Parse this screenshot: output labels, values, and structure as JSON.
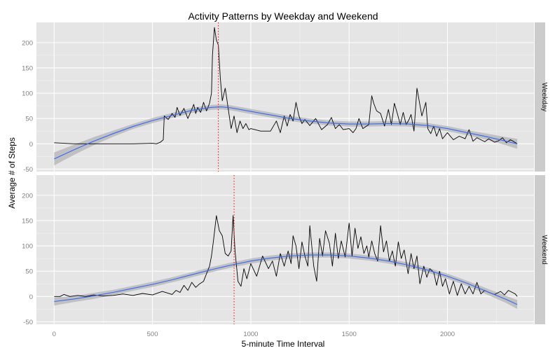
{
  "chart_data": {
    "type": "line",
    "title": "Activity Patterns by Weekday and Weekend",
    "xlabel": "5-minute Time Interval",
    "ylabel": "Average # of Steps",
    "xlim": [
      -90,
      2440
    ],
    "x_ticks": [
      0,
      500,
      1000,
      1500,
      2000
    ],
    "x_tick_labels": [
      "0",
      "500",
      "1000",
      "1500",
      "2000"
    ],
    "y_ticks": [
      -50,
      0,
      50,
      100,
      150,
      200
    ],
    "y_tick_labels": [
      "-50",
      "0",
      "50",
      "100",
      "150",
      "200"
    ],
    "grid": true,
    "colors": {
      "line": "#000000",
      "smooth": "#3366ff",
      "ribbon": "#b3b3b3",
      "vline": "#ff0000",
      "panel": "#e5e5e5",
      "strip": "#cccccc"
    },
    "panels": [
      {
        "label": "Weekday",
        "ylim": [
          -55,
          240
        ],
        "vline_x": 835,
        "series": [
          {
            "x": [
              0,
              100,
              200,
              300,
              400,
              500,
              520,
              540,
              555,
              560,
              580,
              600,
              615,
              625,
              640,
              660,
              680,
              700,
              710,
              720,
              730,
              745,
              760,
              775,
              790,
              800,
              805,
              815,
              825,
              835,
              845,
              855,
              870,
              885,
              900,
              915,
              930,
              945,
              960,
              975,
              990,
              1000,
              1050,
              1100,
              1130,
              1150,
              1170,
              1185,
              1200,
              1215,
              1230,
              1245,
              1260,
              1275,
              1300,
              1330,
              1360,
              1390,
              1410,
              1430,
              1450,
              1470,
              1500,
              1520,
              1535,
              1550,
              1570,
              1600,
              1615,
              1625,
              1640,
              1660,
              1680,
              1700,
              1715,
              1730,
              1745,
              1760,
              1775,
              1790,
              1805,
              1815,
              1830,
              1845,
              1870,
              1890,
              1900,
              1915,
              1930,
              1945,
              1960,
              1975,
              2000,
              2030,
              2060,
              2090,
              2110,
              2130,
              2150,
              2170,
              2190,
              2210,
              2240,
              2260,
              2280,
              2300,
              2320,
              2335,
              2355
            ],
            "y": [
              2,
              0,
              0,
              0,
              0,
              1,
              0,
              3,
              8,
              55,
              48,
              60,
              52,
              72,
              56,
              70,
              50,
              68,
              78,
              60,
              72,
              62,
              82,
              65,
              80,
              100,
              175,
              230,
              205,
              195,
              130,
              85,
              110,
              70,
              30,
              55,
              22,
              45,
              30,
              40,
              28,
              30,
              25,
              25,
              45,
              22,
              55,
              35,
              58,
              45,
              82,
              55,
              40,
              48,
              36,
              50,
              28,
              38,
              52,
              30,
              38,
              28,
              30,
              22,
              30,
              50,
              30,
              38,
              95,
              80,
              65,
              60,
              35,
              68,
              38,
              80,
              60,
              38,
              62,
              38,
              48,
              58,
              25,
              110,
              55,
              82,
              30,
              20,
              35,
              15,
              30,
              10,
              22,
              8,
              15,
              10,
              28,
              5,
              12,
              8,
              4,
              10,
              3,
              6,
              12,
              2,
              8,
              5,
              0
            ]
          }
        ],
        "smooth": {
          "x": [
            0,
            100,
            200,
            300,
            400,
            500,
            600,
            700,
            800,
            850,
            900,
            1000,
            1100,
            1200,
            1300,
            1400,
            1500,
            1600,
            1700,
            1800,
            1900,
            2000,
            2100,
            2200,
            2300,
            2355
          ],
          "y": [
            -30,
            -12,
            5,
            20,
            34,
            46,
            56,
            66,
            72,
            73,
            71,
            64,
            57,
            50,
            45,
            41,
            39,
            39,
            40,
            39,
            36,
            30,
            22,
            14,
            5,
            0
          ],
          "se": [
            13,
            10,
            8,
            6,
            5,
            5,
            5,
            5,
            5,
            5,
            5,
            5,
            5,
            5,
            5,
            5,
            5,
            5,
            5,
            5,
            5,
            5,
            5,
            6,
            8,
            10
          ]
        }
      },
      {
        "label": "Weekend",
        "ylim": [
          -55,
          240
        ],
        "vline_x": 915,
        "series": [
          {
            "x": [
              0,
              30,
              50,
              80,
              120,
              160,
              200,
              250,
              300,
              350,
              400,
              450,
              500,
              550,
              600,
              620,
              640,
              660,
              680,
              700,
              720,
              740,
              760,
              775,
              790,
              800,
              810,
              825,
              840,
              855,
              870,
              885,
              900,
              910,
              920,
              935,
              950,
              965,
              980,
              1000,
              1030,
              1060,
              1090,
              1110,
              1130,
              1150,
              1170,
              1190,
              1205,
              1215,
              1230,
              1245,
              1260,
              1275,
              1290,
              1300,
              1320,
              1335,
              1350,
              1365,
              1380,
              1400,
              1415,
              1430,
              1445,
              1460,
              1480,
              1500,
              1515,
              1530,
              1545,
              1560,
              1575,
              1590,
              1600,
              1615,
              1630,
              1645,
              1660,
              1675,
              1690,
              1705,
              1720,
              1735,
              1750,
              1765,
              1780,
              1800,
              1815,
              1830,
              1845,
              1860,
              1880,
              1895,
              1910,
              1930,
              1945,
              1960,
              1975,
              1990,
              2010,
              2030,
              2050,
              2070,
              2090,
              2110,
              2130,
              2150,
              2170,
              2190,
              2210,
              2240,
              2270,
              2290,
              2310,
              2330,
              2345,
              2355
            ],
            "y": [
              0,
              0,
              4,
              0,
              2,
              0,
              3,
              1,
              2,
              5,
              2,
              6,
              3,
              10,
              4,
              12,
              8,
              22,
              12,
              28,
              18,
              25,
              30,
              45,
              60,
              80,
              110,
              160,
              130,
              120,
              85,
              80,
              90,
              160,
              90,
              30,
              20,
              55,
              35,
              65,
              40,
              80,
              55,
              70,
              40,
              85,
              60,
              90,
              65,
              120,
              100,
              55,
              108,
              80,
              60,
              140,
              60,
              30,
              115,
              80,
              130,
              105,
              60,
              125,
              75,
              110,
              78,
              145,
              80,
              135,
              95,
              118,
              85,
              100,
              78,
              110,
              85,
              70,
              140,
              88,
              110,
              70,
              90,
              60,
              108,
              75,
              92,
              45,
              85,
              55,
              80,
              25,
              60,
              38,
              55,
              48,
              22,
              50,
              20,
              35,
              5,
              30,
              2,
              25,
              5,
              20,
              5,
              28,
              5,
              12,
              8,
              4,
              10,
              3,
              12,
              8,
              5,
              0
            ]
          }
        ],
        "smooth": {
          "x": [
            0,
            100,
            200,
            300,
            400,
            500,
            600,
            700,
            800,
            900,
            1000,
            1100,
            1200,
            1300,
            1400,
            1500,
            1600,
            1700,
            1800,
            1900,
            2000,
            2100,
            2200,
            2300,
            2355
          ],
          "y": [
            -10,
            -5,
            1,
            8,
            16,
            24,
            33,
            43,
            53,
            62,
            70,
            76,
            80,
            82,
            82,
            80,
            76,
            70,
            62,
            52,
            40,
            26,
            10,
            -6,
            -16
          ],
          "se": [
            8,
            6,
            6,
            5,
            5,
            5,
            5,
            5,
            5,
            5,
            5,
            5,
            5,
            5,
            5,
            5,
            5,
            5,
            5,
            5,
            5,
            5,
            6,
            7,
            9
          ]
        }
      }
    ]
  }
}
